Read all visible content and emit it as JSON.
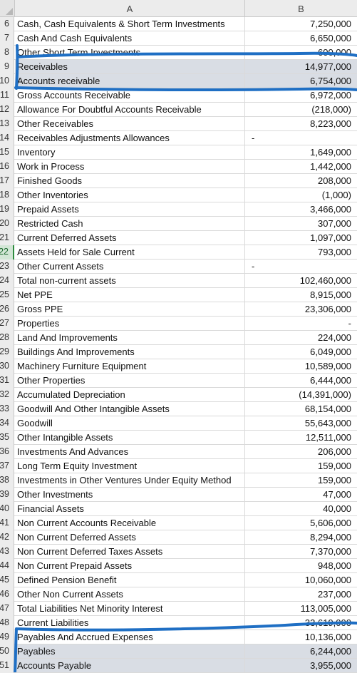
{
  "columns": {
    "a": "A",
    "b": "B"
  },
  "rows": [
    {
      "n": "6",
      "label": "Cash, Cash Equivalents & Short Term Investments",
      "value": "7,250,000"
    },
    {
      "n": "7",
      "label": "Cash And Cash Equivalents",
      "value": "6,650,000"
    },
    {
      "n": "8",
      "label": "Other Short Term Investments",
      "value": "600,000"
    },
    {
      "n": "9",
      "label": "Receivables",
      "value": "14,977,000"
    },
    {
      "n": "10",
      "label": "Accounts receivable",
      "value": "6,754,000"
    },
    {
      "n": "11",
      "label": "Gross Accounts Receivable",
      "value": "6,972,000"
    },
    {
      "n": "12",
      "label": "Allowance For Doubtful Accounts Receivable",
      "value": "(218,000)"
    },
    {
      "n": "13",
      "label": "Other Receivables",
      "value": "8,223,000"
    },
    {
      "n": "14",
      "label": "Receivables Adjustments Allowances",
      "value": "",
      "dash": "-"
    },
    {
      "n": "15",
      "label": "Inventory",
      "value": "1,649,000"
    },
    {
      "n": "16",
      "label": "Work in Process",
      "value": "1,442,000"
    },
    {
      "n": "17",
      "label": "Finished Goods",
      "value": "208,000"
    },
    {
      "n": "18",
      "label": "Other Inventories",
      "value": "(1,000)"
    },
    {
      "n": "19",
      "label": "Prepaid Assets",
      "value": "3,466,000"
    },
    {
      "n": "20",
      "label": "Restricted Cash",
      "value": "307,000"
    },
    {
      "n": "21",
      "label": "Current Deferred Assets",
      "value": "1,097,000"
    },
    {
      "n": "22",
      "label": "Assets Held for Sale Current",
      "value": "793,000"
    },
    {
      "n": "23",
      "label": "Other Current Assets",
      "value": "",
      "dash": "-"
    },
    {
      "n": "24",
      "label": "Total non-current assets",
      "value": "102,460,000"
    },
    {
      "n": "25",
      "label": "Net PPE",
      "value": "8,915,000"
    },
    {
      "n": "26",
      "label": "Gross PPE",
      "value": "23,306,000"
    },
    {
      "n": "27",
      "label": "Properties",
      "value": "-"
    },
    {
      "n": "28",
      "label": "Land And Improvements",
      "value": "224,000"
    },
    {
      "n": "29",
      "label": "Buildings And Improvements",
      "value": "6,049,000"
    },
    {
      "n": "30",
      "label": "Machinery Furniture Equipment",
      "value": "10,589,000"
    },
    {
      "n": "31",
      "label": "Other Properties",
      "value": "6,444,000"
    },
    {
      "n": "32",
      "label": "Accumulated Depreciation",
      "value": "(14,391,000)"
    },
    {
      "n": "33",
      "label": "Goodwill And Other Intangible Assets",
      "value": "68,154,000"
    },
    {
      "n": "34",
      "label": "Goodwill",
      "value": "55,643,000"
    },
    {
      "n": "35",
      "label": "Other Intangible Assets",
      "value": "12,511,000"
    },
    {
      "n": "36",
      "label": "Investments And Advances",
      "value": "206,000"
    },
    {
      "n": "37",
      "label": "Long Term Equity Investment",
      "value": "159,000"
    },
    {
      "n": "38",
      "label": "Investments in Other Ventures Under Equity Method",
      "value": "159,000"
    },
    {
      "n": "39",
      "label": "Other Investments",
      "value": "47,000"
    },
    {
      "n": "40",
      "label": "Financial Assets",
      "value": "40,000"
    },
    {
      "n": "41",
      "label": "Non Current Accounts Receivable",
      "value": "5,606,000"
    },
    {
      "n": "42",
      "label": "Non Current Deferred Assets",
      "value": "8,294,000"
    },
    {
      "n": "43",
      "label": "Non Current Deferred Taxes Assets",
      "value": "7,370,000"
    },
    {
      "n": "44",
      "label": "Non Current Prepaid Assets",
      "value": "948,000"
    },
    {
      "n": "45",
      "label": "Defined Pension Benefit",
      "value": "10,060,000"
    },
    {
      "n": "46",
      "label": "Other Non Current Assets",
      "value": "237,000"
    },
    {
      "n": "47",
      "label": "Total Liabilities Net Minority Interest",
      "value": "113,005,000"
    },
    {
      "n": "48",
      "label": "Current Liabilities",
      "value": "33,619,000"
    },
    {
      "n": "49",
      "label": "Payables And Accrued Expenses",
      "value": "10,136,000"
    },
    {
      "n": "50",
      "label": "Payables",
      "value": "6,244,000"
    },
    {
      "n": "51",
      "label": "Accounts Payable",
      "value": "3,955,000"
    }
  ],
  "highlighted_rows": [
    "9",
    "10",
    "50",
    "51"
  ],
  "selected_row": "22",
  "colors": {
    "annotation": "#1f6fc4",
    "highlight": "#d9dde4",
    "selection": "#2e8b3e"
  }
}
